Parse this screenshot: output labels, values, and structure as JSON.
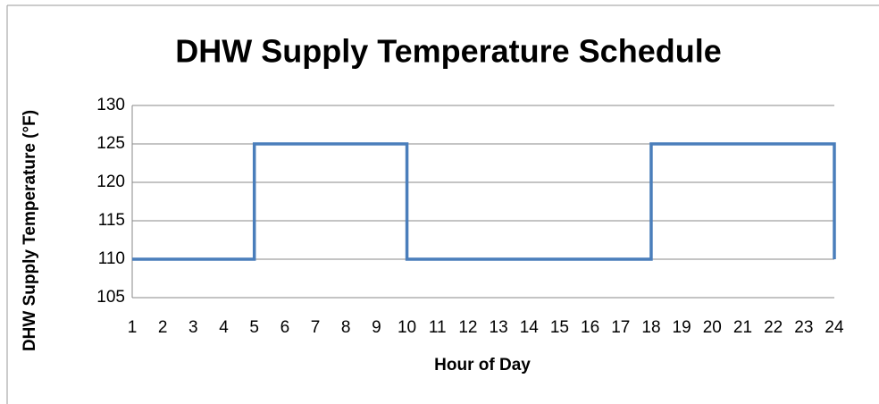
{
  "chart_data": {
    "type": "line",
    "step": true,
    "title": "DHW Supply Temperature Schedule",
    "xlabel": "Hour of Day",
    "ylabel": "DHW Supply Temperature (°F)",
    "x": [
      1,
      2,
      3,
      4,
      5,
      6,
      7,
      8,
      9,
      10,
      11,
      12,
      13,
      14,
      15,
      16,
      17,
      18,
      19,
      20,
      21,
      22,
      23,
      24
    ],
    "series": [
      {
        "name": "DHW Supply Temperature",
        "color": "#4a7ebb",
        "values": [
          110,
          110,
          110,
          110,
          125,
          125,
          125,
          125,
          125,
          110,
          110,
          110,
          110,
          110,
          110,
          110,
          110,
          125,
          125,
          125,
          125,
          125,
          125,
          110
        ]
      }
    ],
    "xlim": [
      1,
      24
    ],
    "xticks": [
      1,
      2,
      3,
      4,
      5,
      6,
      7,
      8,
      9,
      10,
      11,
      12,
      13,
      14,
      15,
      16,
      17,
      18,
      19,
      20,
      21,
      22,
      23,
      24
    ],
    "ylim": [
      105,
      130
    ],
    "yticks": [
      105,
      110,
      115,
      120,
      125,
      130
    ],
    "grid": true,
    "legend": false
  }
}
